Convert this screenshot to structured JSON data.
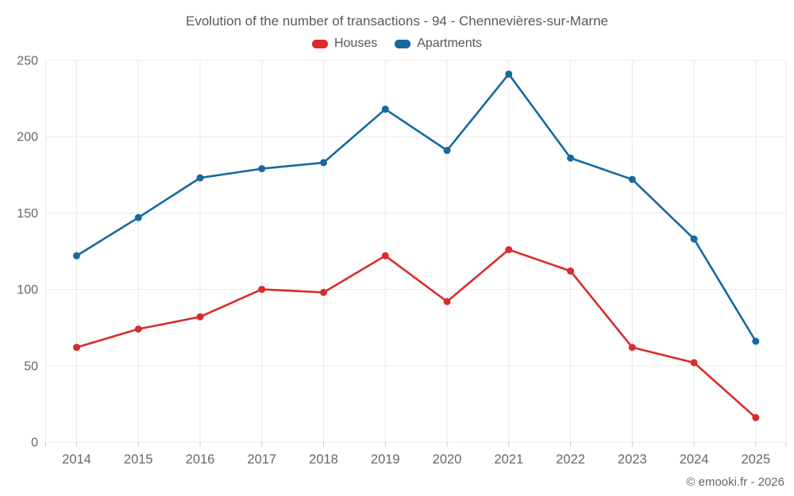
{
  "footer": {
    "credit": "© emooki.fr - 2026"
  },
  "colors": {
    "houses": "#d92c2c",
    "apartments": "#16699e",
    "gridline": "#e9e9e9",
    "tick": "#cccccc",
    "axis_text": "#666666",
    "title_text": "#595959"
  },
  "chart_data": {
    "type": "line",
    "title": "Evolution of the number of transactions - 94 - Chennevières-sur-Marne",
    "categories": [
      "2014",
      "2015",
      "2016",
      "2017",
      "2018",
      "2019",
      "2020",
      "2021",
      "2022",
      "2023",
      "2024",
      "2025"
    ],
    "series": [
      {
        "name": "Houses",
        "color": "#d92c2c",
        "values": [
          62,
          74,
          82,
          100,
          98,
          122,
          92,
          126,
          112,
          62,
          52,
          16
        ]
      },
      {
        "name": "Apartments",
        "color": "#16699e",
        "values": [
          122,
          147,
          173,
          179,
          183,
          218,
          191,
          241,
          186,
          172,
          133,
          66
        ]
      }
    ],
    "ylim": [
      0,
      250
    ],
    "yticks": [
      0,
      50,
      100,
      150,
      200,
      250
    ],
    "grid": true,
    "markers": true,
    "legend_position": "top",
    "xlabel": "",
    "ylabel": ""
  }
}
